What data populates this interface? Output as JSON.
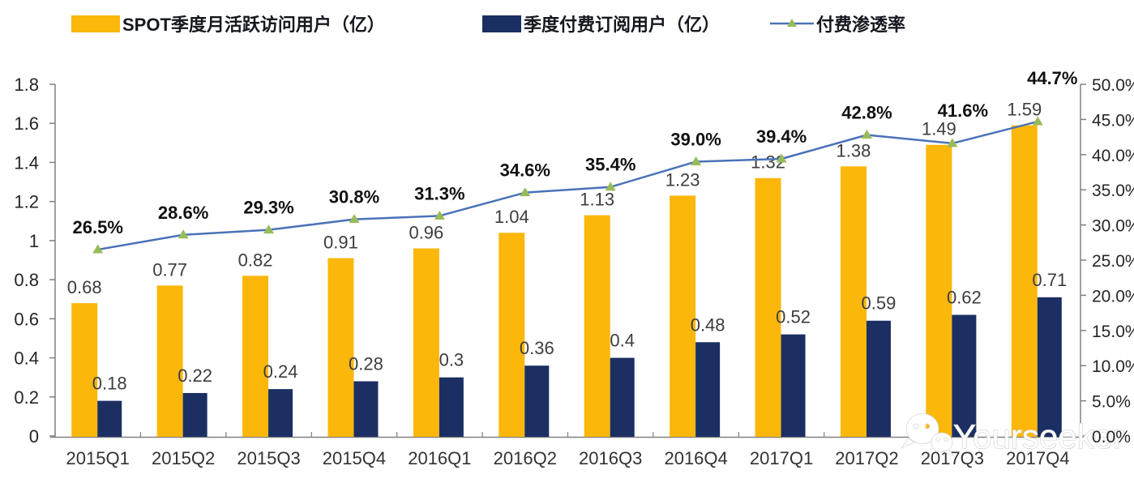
{
  "legend": {
    "items": [
      {
        "label": "SPOT季度月活跃访问用户（亿）",
        "swatch": "bar",
        "color": "#FCB70B"
      },
      {
        "label": "季度付费订阅用户（亿）",
        "swatch": "bar",
        "color": "#1B2F63"
      },
      {
        "label": "付费渗透率",
        "swatch": "line-marker",
        "color": "#4A72B8",
        "marker_color": "#97BB5A"
      }
    ]
  },
  "chart_data": {
    "type": "combo-bar-line",
    "title": "",
    "categories": [
      "2015Q1",
      "2015Q2",
      "2015Q3",
      "2015Q4",
      "2016Q1",
      "2016Q2",
      "2016Q3",
      "2016Q4",
      "2017Q1",
      "2017Q2",
      "2017Q3",
      "2017Q4"
    ],
    "series": [
      {
        "name": "SPOT季度月活跃访问用户（亿）",
        "type": "bar",
        "axis": "left",
        "color": "#FCB70B",
        "values": [
          0.68,
          0.77,
          0.82,
          0.91,
          0.96,
          1.04,
          1.13,
          1.23,
          1.32,
          1.38,
          1.49,
          1.59
        ]
      },
      {
        "name": "季度付费订阅用户（亿）",
        "type": "bar",
        "axis": "left",
        "color": "#1B2F63",
        "values": [
          0.18,
          0.22,
          0.24,
          0.28,
          0.3,
          0.36,
          0.4,
          0.48,
          0.52,
          0.59,
          0.62,
          0.71
        ]
      },
      {
        "name": "付费渗透率",
        "type": "line",
        "axis": "right",
        "color": "#4A72B8",
        "marker": "triangle",
        "marker_color": "#97BB5A",
        "values": [
          26.5,
          28.6,
          29.3,
          30.8,
          31.3,
          34.6,
          35.4,
          39.0,
          39.4,
          42.8,
          41.6,
          44.7
        ]
      }
    ],
    "left_axis": {
      "min": 0,
      "max": 1.8,
      "tick_labels": [
        "1.8",
        "1.6",
        "1.4",
        "1.2",
        "1",
        "0.8",
        "0.6",
        "0.4",
        "0.2",
        "0"
      ]
    },
    "right_axis": {
      "min": 0,
      "max": 50,
      "tick_labels": [
        "50.0%",
        "45.0%",
        "40.0%",
        "35.0%",
        "30.0%",
        "25.0%",
        "20.0%",
        "15.0%",
        "10.0%",
        "5.0%",
        "0.0%"
      ]
    },
    "grid": false,
    "legend_position": "top"
  },
  "watermark": {
    "text": "Yourseeker",
    "icon": "wechat-icon"
  }
}
